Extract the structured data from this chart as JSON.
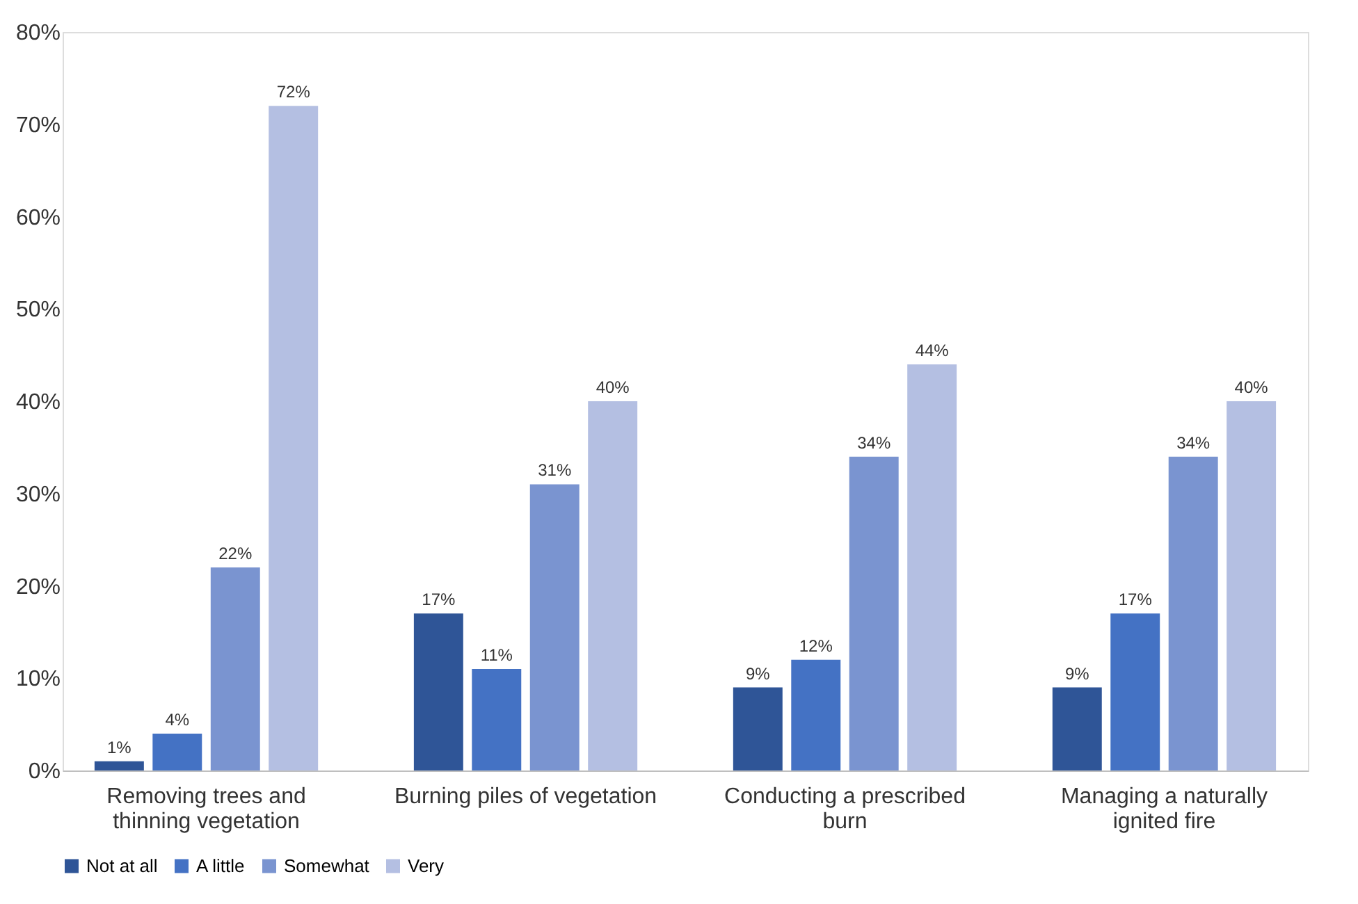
{
  "chart_data": {
    "type": "bar",
    "categories": [
      "Removing trees and thinning vegetation",
      "Burning piles of vegetation",
      "Conducting a prescribed burn",
      "Managing a naturally ignited fire"
    ],
    "series": [
      {
        "name": "Not at all",
        "color": "#2f5597",
        "values": [
          1,
          17,
          9,
          9
        ],
        "value_labels": [
          "1%",
          "17%",
          "9%",
          "9%"
        ]
      },
      {
        "name": "A little",
        "color": "#4472c4",
        "values": [
          4,
          11,
          12,
          17
        ],
        "value_labels": [
          "4%",
          "11%",
          "12%",
          "17%"
        ]
      },
      {
        "name": "Somewhat",
        "color": "#7a94d0",
        "values": [
          22,
          31,
          34,
          34
        ],
        "value_labels": [
          "22%",
          "31%",
          "34%",
          "34%"
        ]
      },
      {
        "name": "Very",
        "color": "#b4bfe2",
        "values": [
          72,
          40,
          44,
          40
        ],
        "value_labels": [
          "72%",
          "40%",
          "44%",
          "40%"
        ]
      }
    ],
    "ylim": [
      0,
      80
    ],
    "yticks": [
      {
        "value": 0,
        "label": "0%"
      },
      {
        "value": 10,
        "label": "10%"
      },
      {
        "value": 20,
        "label": "20%"
      },
      {
        "value": 30,
        "label": "30%"
      },
      {
        "value": 40,
        "label": "40%"
      },
      {
        "value": 50,
        "label": "50%"
      },
      {
        "value": 60,
        "label": "60%"
      },
      {
        "value": 70,
        "label": "70%"
      },
      {
        "value": 80,
        "label": "80%"
      }
    ],
    "legend": "bottom",
    "grid": false
  }
}
